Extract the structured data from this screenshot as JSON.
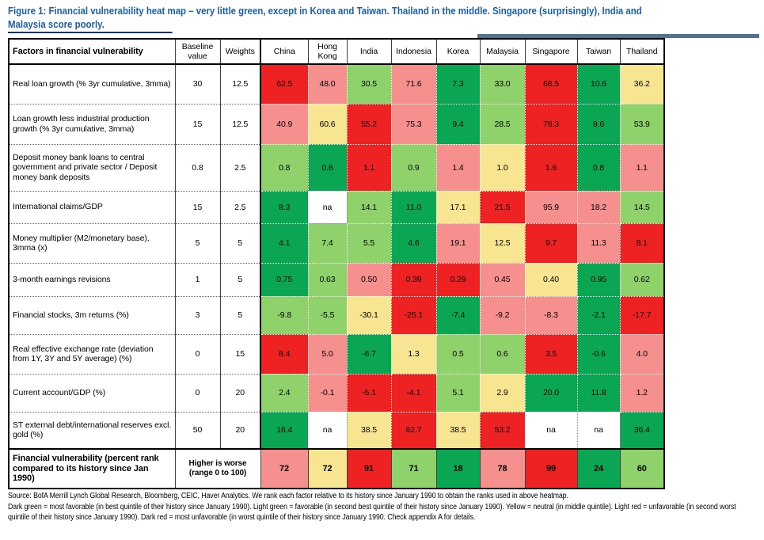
{
  "title": {
    "line1": "Figure 1: Financial vulnerability heat map – very little green, except in Korea and Taiwan. Thailand in the middle. Singapore (surprisingly), India and",
    "line2": "Malaysia score poorly."
  },
  "palette": {
    "DR": "#EE2123",
    "LR": "#F5908F",
    "Y": "#F7E591",
    "LG": "#8FD26C",
    "DG": "#0BA653",
    "NA": "#FFFFFF",
    "title_blue": "#1B5EA9",
    "rule_bar": "#4F7391"
  },
  "chart_data": {
    "type": "heatmap",
    "title": "Financial vulnerability heat map (percent rank vs own history since Jan 1990; red = unfavorable, green = favorable)",
    "header": {
      "factors": "Factors in financial vulnerability",
      "baseline": "Baseline value",
      "weights": "Weights",
      "countries": [
        "China",
        "Hong Kong",
        "India",
        "Indonesia",
        "Korea",
        "Malaysia",
        "Singapore",
        "Taiwan",
        "Thailand"
      ]
    },
    "rows": [
      {
        "factor": "Real loan growth (% 3yr cumulative, 3mma)",
        "baseline": "30",
        "weight": "12.5",
        "values": [
          "62.5",
          "48.0",
          "30.5",
          "71.6",
          "7.3",
          "33.0",
          "68.5",
          "10.6",
          "36.2"
        ],
        "colors": [
          "DR",
          "LR",
          "LG",
          "LR",
          "DG",
          "LG",
          "DR",
          "DG",
          "Y"
        ]
      },
      {
        "factor": "Loan growth less industrial production growth (% 3yr cumulative, 3mma)",
        "baseline": "15",
        "weight": "12.5",
        "values": [
          "40.9",
          "60.6",
          "55.2",
          "75.3",
          "9.4",
          "28.5",
          "78.3",
          "9.6",
          "53.9"
        ],
        "colors": [
          "LR",
          "Y",
          "DR",
          "LR",
          "DG",
          "LG",
          "DR",
          "DG",
          "LG"
        ]
      },
      {
        "factor": "Deposit money bank loans to central government and private sector / Deposit money bank deposits",
        "baseline": "0.8",
        "weight": "2.5",
        "values": [
          "0.8",
          "0.8",
          "1.1",
          "0.9",
          "1.4",
          "1.0",
          "1.6",
          "0.8",
          "1.1"
        ],
        "colors": [
          "LG",
          "DG",
          "DR",
          "LG",
          "LR",
          "Y",
          "DR",
          "DG",
          "LR"
        ]
      },
      {
        "factor": "International claims/GDP",
        "baseline": "15",
        "weight": "2.5",
        "values": [
          "8.3",
          "na",
          "14.1",
          "11.0",
          "17.1",
          "21.5",
          "95.9",
          "18.2",
          "14.5"
        ],
        "colors": [
          "DG",
          "NA",
          "LG",
          "DG",
          "Y",
          "DR",
          "LR",
          "LR",
          "LG"
        ]
      },
      {
        "factor": "Money multiplier (M2/monetary base), 3mma (x)",
        "baseline": "5",
        "weight": "5",
        "values": [
          "4.1",
          "7.4",
          "5.5",
          "4.6",
          "19.1",
          "12.5",
          "9.7",
          "11.3",
          "8.1"
        ],
        "colors": [
          "DG",
          "LG",
          "LG",
          "DG",
          "LR",
          "Y",
          "DR",
          "LR",
          "DR"
        ]
      },
      {
        "factor": "3-month earnings revisions",
        "baseline": "1",
        "weight": "5",
        "values": [
          "0.75",
          "0.63",
          "0.50",
          "0.39",
          "0.29",
          "0.45",
          "0.40",
          "0.95",
          "0.62"
        ],
        "colors": [
          "DG",
          "LG",
          "LR",
          "DR",
          "DR",
          "LR",
          "Y",
          "DG",
          "LG"
        ]
      },
      {
        "factor": "Financial stocks, 3m returns (%)",
        "baseline": "3",
        "weight": "5",
        "values": [
          "-9.8",
          "-5.5",
          "-30.1",
          "-25.1",
          "-7.4",
          "-9.2",
          "-8.3",
          "-2.1",
          "-17.7"
        ],
        "colors": [
          "LG",
          "LG",
          "Y",
          "DR",
          "DG",
          "LR",
          "LR",
          "DG",
          "DR"
        ]
      },
      {
        "factor": "Real effective exchange rate (deviation from 1Y, 3Y and 5Y average) (%)",
        "baseline": "0",
        "weight": "15",
        "values": [
          "8.4",
          "5.0",
          "-6.7",
          "1.3",
          "0.5",
          "0.6",
          "3.5",
          "-0.6",
          "4.0"
        ],
        "colors": [
          "DR",
          "LR",
          "DG",
          "Y",
          "LG",
          "LG",
          "DR",
          "DG",
          "LR"
        ]
      },
      {
        "factor": "Current account/GDP (%)",
        "baseline": "0",
        "weight": "20",
        "values": [
          "2.4",
          "-0.1",
          "-5.1",
          "-4.1",
          "5.1",
          "2.9",
          "20.0",
          "11.8",
          "1.2"
        ],
        "colors": [
          "LG",
          "LR",
          "DR",
          "DR",
          "LG",
          "Y",
          "DG",
          "DG",
          "LR"
        ]
      },
      {
        "factor": "ST external debt/international reserves excl. gold (%)",
        "baseline": "50",
        "weight": "20",
        "values": [
          "16.4",
          "na",
          "38.5",
          "62.7",
          "38.5",
          "53.2",
          "na",
          "na",
          "36.4"
        ],
        "colors": [
          "DG",
          "NA",
          "Y",
          "DR",
          "Y",
          "DR",
          "NA",
          "NA",
          "DG"
        ]
      }
    ],
    "summary": {
      "label": "Financial vulnerability (percent rank compared to its history since Jan 1990)",
      "note": "Higher is worse (range 0 to 100)",
      "values": [
        "72",
        "72",
        "91",
        "71",
        "18",
        "78",
        "99",
        "24",
        "60"
      ],
      "colors": [
        "LR",
        "Y",
        "DR",
        "LG",
        "DG",
        "LR",
        "DR",
        "DG",
        "LG"
      ]
    }
  },
  "footnotes": {
    "source": "Source: BofA Merrill Lynch Global Research, Bloomberg, CEIC, Haver Analytics. We rank each factor relative to its history since January 1990 to obtain the ranks used in above heatmap.",
    "legend": "Dark green = most favorable (in best quintile of their history since January 1990). Light green = favorable (in second best quintile of their history since January 1990). Yellow = neutral (in middle quintile). Light red = unfavorable (in second worst quintile of their history since January 1990). Dark red = most unfavorable (in worst quintile of their history since January 1990. Check appendix A for details."
  }
}
